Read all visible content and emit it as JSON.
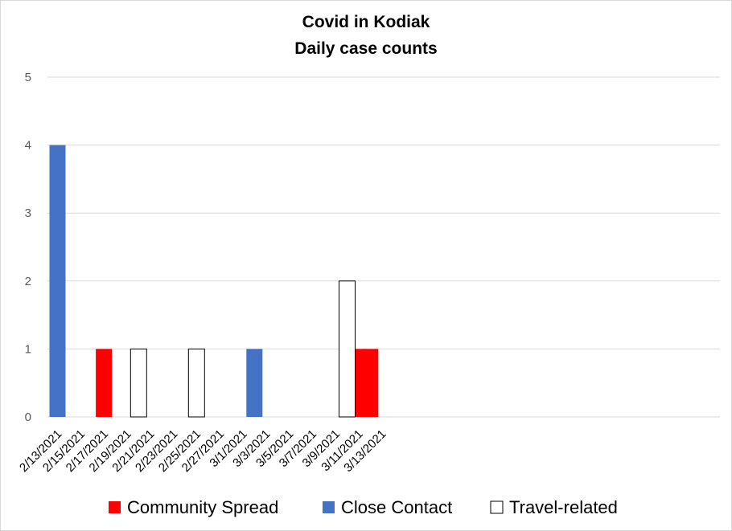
{
  "chart_data": {
    "type": "bar",
    "title": "Covid in Kodiak",
    "subtitle": "Daily case counts",
    "xlabel": "",
    "ylabel": "",
    "ylim": [
      0,
      5
    ],
    "yticks": [
      "0",
      "1",
      "2",
      "3",
      "4",
      "5"
    ],
    "grid": true,
    "legend_position": "bottom",
    "x_start": "2/13/2021",
    "x_end": "3/13/2021",
    "x_ticks": [
      "2/13/2021",
      "2/15/2021",
      "2/17/2021",
      "2/19/2021",
      "2/21/2021",
      "2/23/2021",
      "2/25/2021",
      "2/27/2021",
      "3/1/2021",
      "3/3/2021",
      "3/5/2021",
      "3/7/2021",
      "3/9/2021",
      "3/11/2021",
      "3/13/2021"
    ],
    "series": [
      {
        "name": "Community Spread",
        "color": "#ff0000",
        "points": [
          {
            "x": "2/17/2021",
            "y": 1
          },
          {
            "x": "3/11/2021",
            "y": 1
          },
          {
            "x": "3/12/2021",
            "y": 1
          }
        ]
      },
      {
        "name": "Close Contact",
        "color": "#4472c4",
        "points": [
          {
            "x": "2/13/2021",
            "y": 4
          },
          {
            "x": "3/2/2021",
            "y": 1
          }
        ]
      },
      {
        "name": "Travel-related",
        "color": "#ffffff",
        "stroke": "#000000",
        "points": [
          {
            "x": "2/20/2021",
            "y": 1
          },
          {
            "x": "2/25/2021",
            "y": 1
          },
          {
            "x": "3/10/2021",
            "y": 2
          }
        ]
      }
    ]
  }
}
